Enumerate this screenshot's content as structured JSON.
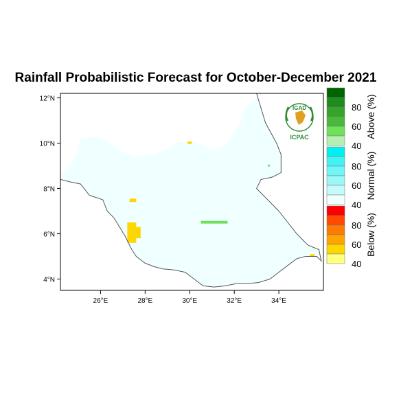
{
  "title": "Rainfall Probabilistic Forecast for October-December 2021",
  "logo": {
    "top_text": "IGAD",
    "bottom_text": "ICPAC",
    "color": "#2e8b3a"
  },
  "map": {
    "lon_range": [
      24.2,
      36.0
    ],
    "lat_range": [
      3.5,
      12.2
    ],
    "x_ticks": [
      {
        "value": 26,
        "label": "26°E"
      },
      {
        "value": 28,
        "label": "28°E"
      },
      {
        "value": 30,
        "label": "30°E"
      },
      {
        "value": 32,
        "label": "32°E"
      },
      {
        "value": 34,
        "label": "34°E"
      }
    ],
    "y_ticks": [
      {
        "value": 4,
        "label": "4°N"
      },
      {
        "value": 6,
        "label": "6°N"
      },
      {
        "value": 8,
        "label": "8°N"
      },
      {
        "value": 10,
        "label": "10°N"
      },
      {
        "value": 12,
        "label": "12°N"
      }
    ],
    "base_fill": "#f0ffff",
    "border": [
      [
        24.2,
        8.4
      ],
      [
        24.6,
        8.3
      ],
      [
        25.1,
        8.2
      ],
      [
        25.5,
        7.7
      ],
      [
        26.1,
        7.5
      ],
      [
        26.3,
        7.0
      ],
      [
        26.6,
        6.7
      ],
      [
        27.1,
        5.9
      ],
      [
        27.4,
        5.3
      ],
      [
        27.6,
        5.0
      ],
      [
        28.0,
        4.7
      ],
      [
        28.4,
        4.55
      ],
      [
        28.8,
        4.45
      ],
      [
        29.3,
        4.4
      ],
      [
        29.8,
        4.3
      ],
      [
        30.2,
        4.0
      ],
      [
        30.6,
        3.7
      ],
      [
        31.1,
        3.65
      ],
      [
        31.6,
        3.7
      ],
      [
        32.1,
        3.8
      ],
      [
        32.6,
        3.8
      ],
      [
        33.1,
        3.85
      ],
      [
        33.6,
        4.0
      ],
      [
        34.0,
        4.3
      ],
      [
        34.4,
        4.6
      ],
      [
        34.8,
        4.9
      ],
      [
        35.2,
        5.0
      ],
      [
        35.7,
        5.0
      ],
      [
        35.9,
        4.8
      ],
      [
        35.8,
        5.3
      ],
      [
        35.3,
        5.5
      ],
      [
        34.8,
        6.0
      ],
      [
        34.4,
        6.5
      ],
      [
        34.0,
        7.0
      ],
      [
        33.4,
        7.6
      ],
      [
        33.0,
        8.0
      ],
      [
        33.2,
        8.4
      ],
      [
        33.7,
        8.5
      ],
      [
        34.1,
        8.7
      ],
      [
        34.1,
        9.5
      ],
      [
        33.9,
        10.0
      ],
      [
        33.4,
        10.9
      ],
      [
        33.0,
        12.2
      ]
    ],
    "polygon": [
      [
        24.2,
        8.4
      ],
      [
        24.6,
        8.3
      ],
      [
        25.1,
        8.2
      ],
      [
        25.5,
        7.7
      ],
      [
        26.1,
        7.5
      ],
      [
        26.3,
        7.0
      ],
      [
        26.6,
        6.7
      ],
      [
        27.1,
        5.9
      ],
      [
        27.4,
        5.3
      ],
      [
        27.6,
        5.0
      ],
      [
        28.0,
        4.7
      ],
      [
        28.4,
        4.55
      ],
      [
        28.8,
        4.45
      ],
      [
        29.3,
        4.4
      ],
      [
        29.8,
        4.3
      ],
      [
        30.2,
        4.0
      ],
      [
        30.6,
        3.7
      ],
      [
        31.1,
        3.65
      ],
      [
        31.6,
        3.7
      ],
      [
        32.1,
        3.8
      ],
      [
        32.6,
        3.8
      ],
      [
        33.1,
        3.85
      ],
      [
        33.6,
        4.0
      ],
      [
        34.0,
        4.3
      ],
      [
        34.4,
        4.6
      ],
      [
        34.8,
        4.9
      ],
      [
        35.2,
        5.0
      ],
      [
        35.7,
        5.0
      ],
      [
        35.8,
        5.3
      ],
      [
        35.3,
        5.5
      ],
      [
        34.8,
        6.0
      ],
      [
        34.4,
        6.5
      ],
      [
        34.0,
        7.0
      ],
      [
        33.4,
        7.6
      ],
      [
        33.0,
        8.0
      ],
      [
        33.2,
        8.4
      ],
      [
        33.7,
        8.5
      ],
      [
        34.1,
        8.7
      ],
      [
        34.1,
        9.5
      ],
      [
        33.9,
        10.0
      ],
      [
        33.4,
        10.9
      ],
      [
        33.0,
        12.2
      ],
      [
        33.3,
        12.2
      ],
      [
        32.4,
        11.5
      ],
      [
        32.3,
        10.9
      ],
      [
        31.6,
        9.9
      ],
      [
        31.0,
        9.7
      ],
      [
        30.5,
        9.95
      ],
      [
        30.0,
        10.1
      ],
      [
        29.3,
        10.0
      ],
      [
        28.9,
        9.7
      ],
      [
        28.3,
        9.5
      ],
      [
        27.6,
        9.4
      ],
      [
        27.0,
        9.6
      ],
      [
        26.3,
        10.1
      ],
      [
        25.8,
        10.3
      ],
      [
        25.1,
        10.2
      ],
      [
        24.9,
        9.4
      ],
      [
        24.5,
        8.9
      ],
      [
        24.2,
        8.6
      ]
    ],
    "forecast_cells": [
      {
        "lon": [
          27.2,
          27.6
        ],
        "lat": [
          5.6,
          6.5
        ],
        "color": "#ffd700"
      },
      {
        "lon": [
          27.6,
          27.8
        ],
        "lat": [
          5.8,
          6.3
        ],
        "color": "#ffd700"
      },
      {
        "lon": [
          27.3,
          27.6
        ],
        "lat": [
          7.4,
          7.55
        ],
        "color": "#ffd700"
      },
      {
        "lon": [
          29.9,
          30.1
        ],
        "lat": [
          9.97,
          10.07
        ],
        "color": "#ffd700"
      },
      {
        "lon": [
          35.4,
          35.6
        ],
        "lat": [
          5.0,
          5.1
        ],
        "color": "#ffd700"
      },
      {
        "lon": [
          30.5,
          31.7
        ],
        "lat": [
          6.45,
          6.57
        ],
        "color": "#6ee05a"
      },
      {
        "lon": [
          33.5,
          33.6
        ],
        "lat": [
          8.97,
          9.05
        ],
        "color": "#6ee05a"
      }
    ]
  },
  "legend": {
    "groups": [
      {
        "title": "Above (%)",
        "colors": [
          "#006400",
          "#1e8c1e",
          "#35a42a",
          "#4ab83a",
          "#6ee05a",
          "#b5f0b0"
        ],
        "labels": [
          "80",
          "60",
          "40"
        ]
      },
      {
        "title": "Normal (%)",
        "colors": [
          "#00f0f0",
          "#40f4f4",
          "#70f6f6",
          "#9cf8f8",
          "#c6fbfb",
          "#f0ffff"
        ],
        "labels": [
          "80",
          "60",
          "40"
        ]
      },
      {
        "title": "Below (%)",
        "colors": [
          "#ff0000",
          "#ff4a00",
          "#ff7a00",
          "#ffa500",
          "#ffd700",
          "#ffff80"
        ],
        "labels": [
          "80",
          "60",
          "40"
        ]
      }
    ]
  }
}
